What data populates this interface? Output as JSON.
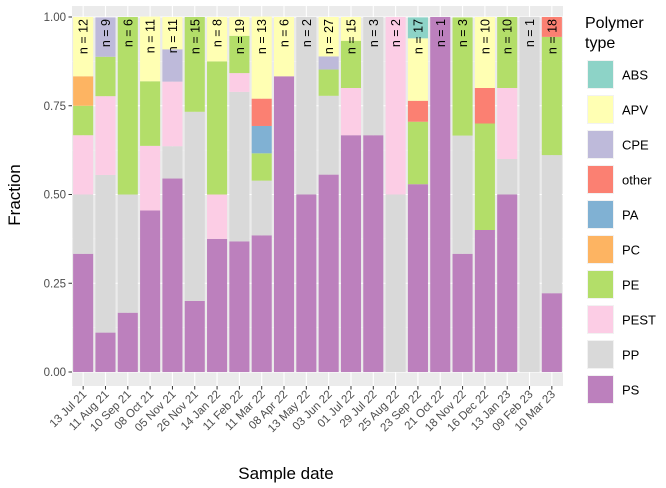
{
  "chart_data": {
    "type": "bar",
    "stacked": true,
    "xlabel": "Sample date",
    "ylabel": "Fraction",
    "ylim": [
      0,
      1
    ],
    "yticks": [
      "0.00",
      "0.25",
      "0.50",
      "0.75",
      "1.00"
    ],
    "legend": {
      "title_line1": "Polymer",
      "title_line2": "type",
      "position": "right"
    },
    "colors": {
      "ABS": "#8dd3c7",
      "APV": "#ffffb3",
      "CPE": "#bebada",
      "other": "#fb8072",
      "PA": "#80b1d3",
      "PC": "#fdb462",
      "PE": "#b3de69",
      "PEST": "#fccde5",
      "PP": "#d9d9d9",
      "PS": "#bc80bd"
    },
    "legend_order": [
      "ABS",
      "APV",
      "CPE",
      "other",
      "PA",
      "PC",
      "PE",
      "PEST",
      "PP",
      "PS"
    ],
    "stack_order": [
      "PS",
      "PP",
      "PEST",
      "PE",
      "PC",
      "PA",
      "other",
      "CPE",
      "APV",
      "ABS"
    ],
    "categories": [
      "13 Jul 21",
      "11 Aug 21",
      "10 Sep 21",
      "08 Oct 21",
      "05 Nov 21",
      "26 Nov 21",
      "14 Jan 22",
      "11 Feb 22",
      "11 Mar 22",
      "08 Apr 22",
      "13 May 22",
      "03 Jun 22",
      "01 Jul 22",
      "29 Jul 22",
      "25 Aug 22",
      "23 Sep 22",
      "21 Oct 22",
      "18 Nov 22",
      "16 Dec 22",
      "13 Jan 23",
      "09 Feb 23",
      "10 Mar 23"
    ],
    "n_labels": [
      "n = 12",
      "n = 9",
      "n = 6",
      "n = 11",
      "n = 11",
      "n = 15",
      "n = 8",
      "n = 19",
      "n = 13",
      "n = 6",
      "n = 2",
      "n = 27",
      "n = 15",
      "n = 3",
      "n = 2",
      "n = 17",
      "n = 1",
      "n = 3",
      "n = 10",
      "n = 10",
      "n = 1",
      "n = 18"
    ],
    "series": [
      {
        "name": "PS",
        "values": [
          0.333,
          0.111,
          0.167,
          0.455,
          0.545,
          0.2,
          0.375,
          0.368,
          0.385,
          0.833,
          0.5,
          0.556,
          0.667,
          0.667,
          0,
          0.529,
          1,
          0.333,
          0.4,
          0.5,
          0,
          0.222
        ]
      },
      {
        "name": "PP",
        "values": [
          0.167,
          0.444,
          0.333,
          0,
          0.091,
          0.533,
          0,
          0.421,
          0.154,
          0,
          0.5,
          0.222,
          0,
          0.333,
          0.5,
          0,
          0,
          0.333,
          0,
          0.1,
          1,
          0.389
        ]
      },
      {
        "name": "PEST",
        "values": [
          0.167,
          0.222,
          0,
          0.182,
          0.182,
          0,
          0.125,
          0.053,
          0,
          0,
          0,
          0,
          0.133,
          0,
          0.5,
          0,
          0,
          0,
          0,
          0.2,
          0,
          0
        ]
      },
      {
        "name": "PE",
        "values": [
          0.083,
          0.111,
          0.5,
          0.182,
          0,
          0.267,
          0.375,
          0.105,
          0.077,
          0,
          0,
          0.074,
          0.133,
          0,
          0,
          0.176,
          0,
          0.333,
          0.3,
          0.2,
          0,
          0.333
        ]
      },
      {
        "name": "PC",
        "values": [
          0.083,
          0,
          0,
          0,
          0,
          0,
          0,
          0,
          0,
          0,
          0,
          0,
          0,
          0,
          0,
          0,
          0,
          0,
          0,
          0,
          0,
          0
        ]
      },
      {
        "name": "PA",
        "values": [
          0,
          0,
          0,
          0,
          0,
          0,
          0,
          0,
          0.077,
          0,
          0,
          0,
          0,
          0,
          0,
          0,
          0,
          0,
          0,
          0,
          0,
          0
        ]
      },
      {
        "name": "other",
        "values": [
          0,
          0,
          0,
          0,
          0,
          0,
          0,
          0,
          0.077,
          0,
          0,
          0,
          0,
          0,
          0,
          0.059,
          0,
          0,
          0.1,
          0,
          0,
          0.056
        ]
      },
      {
        "name": "CPE",
        "values": [
          0,
          0.111,
          0,
          0,
          0.091,
          0,
          0,
          0,
          0,
          0,
          0,
          0.037,
          0,
          0,
          0,
          0,
          0,
          0,
          0,
          0,
          0,
          0
        ]
      },
      {
        "name": "APV",
        "values": [
          0.167,
          0,
          0,
          0.182,
          0.091,
          0,
          0.125,
          0.053,
          0.231,
          0.167,
          0,
          0.111,
          0.067,
          0,
          0,
          0.176,
          0,
          0,
          0.2,
          0,
          0,
          0
        ]
      },
      {
        "name": "ABS",
        "values": [
          0,
          0,
          0,
          0,
          0,
          0,
          0,
          0,
          0,
          0,
          0,
          0,
          0,
          0,
          0,
          0.059,
          0,
          0,
          0,
          0,
          0,
          0
        ]
      }
    ]
  }
}
